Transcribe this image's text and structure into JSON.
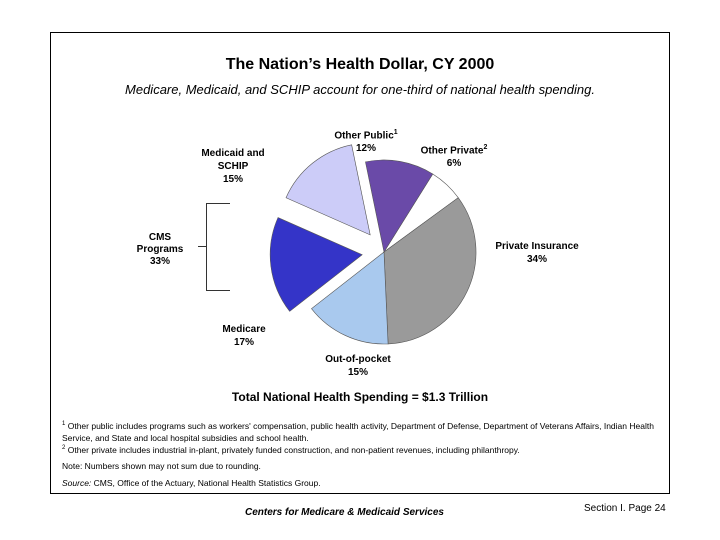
{
  "title": "The Nation’s Health Dollar, CY 2000",
  "subtitle": "Medicare, Medicaid, and SCHIP account for one-third of national health spending.",
  "chart_data": {
    "type": "pie",
    "title": "The Nation’s Health Dollar, CY 2000",
    "slices": [
      {
        "name": "Other Private",
        "value": 6,
        "pct_label": "6%",
        "sup": "2",
        "color": "#ffffff",
        "exploded": false
      },
      {
        "name": "Private Insurance",
        "value": 34,
        "pct_label": "34%",
        "sup": "",
        "color": "#9a9a9a",
        "exploded": false
      },
      {
        "name": "Out-of-pocket",
        "value": 15,
        "pct_label": "15%",
        "sup": "",
        "color": "#a9c9ee",
        "exploded": false
      },
      {
        "name": "Medicare",
        "value": 17,
        "pct_label": "17%",
        "sup": "",
        "color": "#3434c8",
        "exploded": true
      },
      {
        "name": "Medicaid and SCHIP",
        "value": 15,
        "pct_label": "15%",
        "sup": "",
        "color": "#ccccf8",
        "exploded": true
      },
      {
        "name": "Other Public",
        "value": 12,
        "pct_label": "12%",
        "sup": "1",
        "color": "#6a4aa8",
        "exploded": false
      }
    ],
    "group_label": {
      "name": "CMS Programs",
      "pct_label": "33%"
    },
    "caption": "Total National Health Spending = $1.3 Trillion"
  },
  "footnotes": {
    "fn1_num": "1",
    "fn1": "Other public includes programs such as workers' compensation, public health activity, Department of Defense, Department of Veterans Affairs, Indian Health Service, and State and local hospital subsidies and school health.",
    "fn2_num": "2",
    "fn2": "Other private includes industrial in-plant, privately funded construction, and non-patient revenues, including philanthropy.",
    "note": "Note:  Numbers shown may not sum due to rounding.",
    "source_label": "Source:",
    "source_text": " CMS, Office of the Actuary, National Health Statistics Group."
  },
  "footer": {
    "center": "Centers for Medicare & Medicaid Services",
    "page": "Section I. Page 24"
  }
}
